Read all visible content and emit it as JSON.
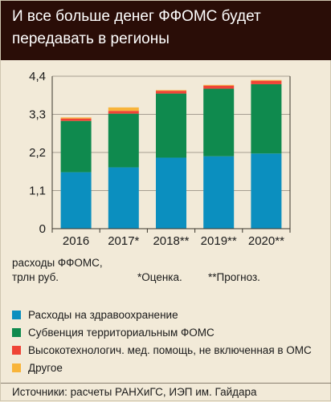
{
  "title": "И все больше денег ФФОМС будет передавать в регионы",
  "unit_note": "расходы ФФОМС,\nтрлн руб.",
  "footnote_estimate": "*Оценка.",
  "footnote_forecast": "**Прогноз.",
  "source": "Источники: расчеты РАНХиГС, ИЭП им. Гайдара",
  "colors": {
    "health": "#0b8fbf",
    "subvention": "#0f8a4e",
    "hightech": "#ef4436",
    "other": "#f8b43a",
    "header_bg": "#2a0d07",
    "page_bg": "#f2ead8"
  },
  "chart_data": {
    "type": "bar",
    "stacked": true,
    "categories": [
      "2016",
      "2017*",
      "2018**",
      "2019**",
      "2020**"
    ],
    "series": [
      {
        "name": "Расходы на здравоохранение",
        "color": "#0b8fbf",
        "values": [
          1.63,
          1.77,
          2.05,
          2.09,
          2.17
        ]
      },
      {
        "name": "Субвенция территориальным ФОМС",
        "color": "#0f8a4e",
        "values": [
          1.48,
          1.55,
          1.85,
          1.95,
          2.0
        ]
      },
      {
        "name": "Высокотехнологич. мед. помощь, не включенная в ОМС",
        "color": "#ef4436",
        "values": [
          0.07,
          0.08,
          0.08,
          0.09,
          0.1
        ]
      },
      {
        "name": "Другое",
        "color": "#f8b43a",
        "values": [
          0.03,
          0.1,
          0.02,
          0.02,
          0.02
        ]
      }
    ],
    "y_ticks": [
      "0",
      "1,1",
      "2,2",
      "3,3",
      "4,4"
    ],
    "y_tick_values": [
      0,
      1.1,
      2.2,
      3.3,
      4.4
    ],
    "ylim": [
      0,
      4.4
    ],
    "grid": true
  }
}
